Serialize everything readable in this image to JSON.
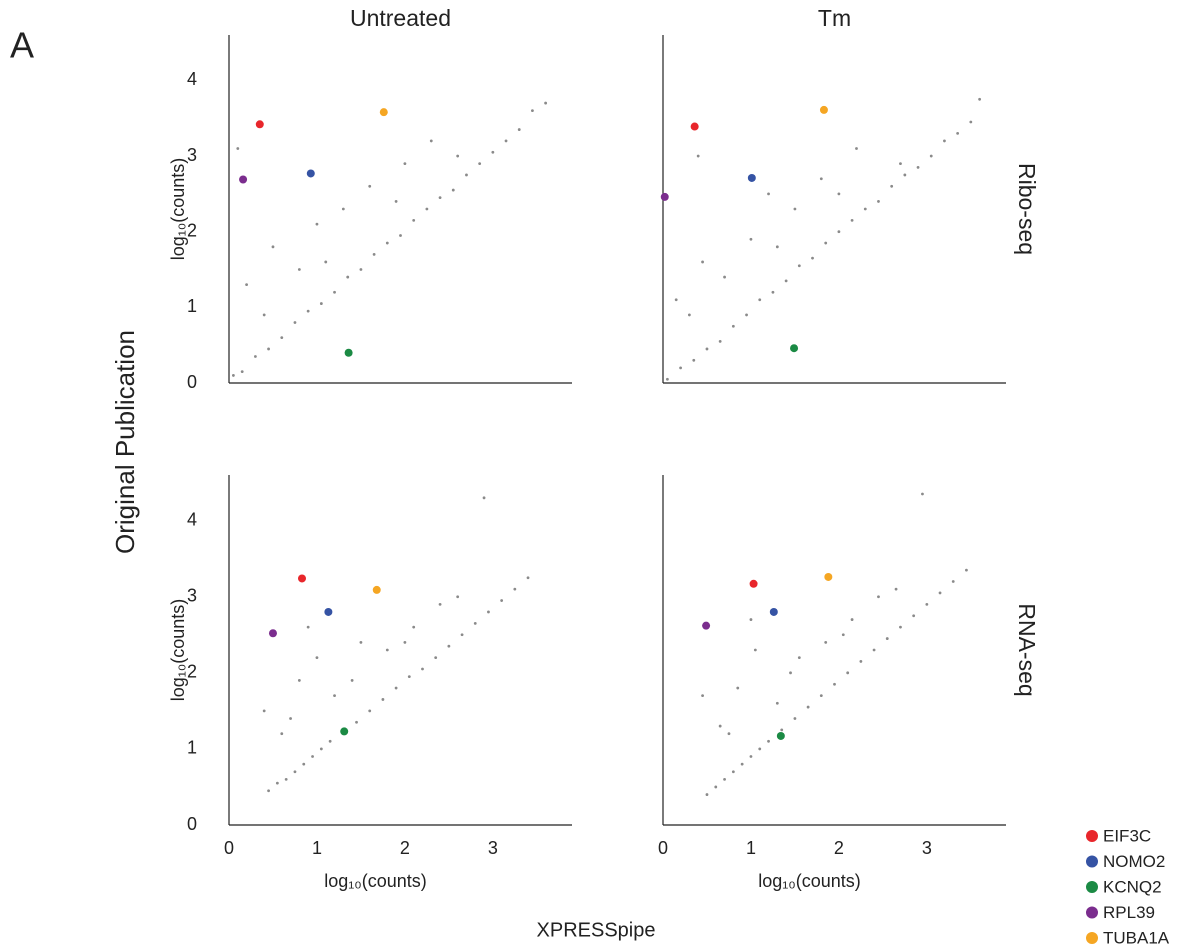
{
  "panel_label": "A",
  "ylabel": "Original Publication",
  "xlabel": "XPRESSpipe",
  "legend": [
    {
      "name": "EIF3C",
      "color": "#e8262b"
    },
    {
      "name": "NOMO2",
      "color": "#3553a4"
    },
    {
      "name": "KCNQ2",
      "color": "#1b8a44"
    },
    {
      "name": "RPL39",
      "color": "#7b2d8e"
    },
    {
      "name": "TUBA1A",
      "color": "#f5a623"
    }
  ],
  "chart_data": [
    {
      "type": "scatter",
      "title": "Untreated",
      "ylabel": "log₁₀(counts)",
      "xlim": [
        0,
        3.9
      ],
      "ylim": [
        0,
        4.6
      ],
      "yticks": [
        0,
        1,
        2,
        3,
        4
      ],
      "points": {
        "color": "#8a8a8a",
        "x": [
          0.05,
          0.15,
          0.3,
          0.45,
          0.6,
          0.75,
          0.9,
          1.05,
          1.2,
          1.35,
          1.5,
          1.65,
          1.8,
          1.95,
          2.1,
          2.25,
          2.4,
          2.55,
          2.7,
          2.85,
          3.0,
          3.15,
          3.3,
          3.45,
          0.2,
          0.5,
          0.8,
          1.0,
          1.3,
          1.6,
          2.0,
          2.3,
          0.4,
          1.1,
          1.9,
          2.6,
          3.6,
          0.1
        ],
        "values": [
          0.1,
          0.15,
          0.35,
          0.45,
          0.6,
          0.8,
          0.95,
          1.05,
          1.2,
          1.4,
          1.5,
          1.7,
          1.85,
          1.95,
          2.15,
          2.3,
          2.45,
          2.55,
          2.75,
          2.9,
          3.05,
          3.2,
          3.35,
          3.6,
          1.3,
          1.8,
          1.5,
          2.1,
          2.3,
          2.6,
          2.9,
          3.2,
          0.9,
          1.6,
          2.4,
          3.0,
          3.7,
          3.1
        ]
      },
      "genes": {
        "x": [
          0.35,
          0.93,
          1.36,
          0.16,
          1.76
        ],
        "values": [
          3.42,
          2.77,
          0.4,
          2.69,
          3.58
        ]
      }
    },
    {
      "type": "scatter",
      "title": "Tm",
      "row_label": "Ribo-seq",
      "xlim": [
        0,
        3.9
      ],
      "ylim": [
        0,
        4.6
      ],
      "points": {
        "color": "#8a8a8a",
        "x": [
          0.05,
          0.2,
          0.35,
          0.5,
          0.65,
          0.8,
          0.95,
          1.1,
          1.25,
          1.4,
          1.55,
          1.7,
          1.85,
          2.0,
          2.15,
          2.3,
          2.45,
          2.6,
          2.75,
          2.9,
          3.05,
          3.2,
          3.35,
          3.5,
          0.15,
          0.45,
          0.7,
          1.0,
          1.2,
          1.5,
          1.8,
          2.2,
          0.3,
          1.3,
          2.0,
          2.7,
          3.6,
          0.4
        ],
        "values": [
          0.05,
          0.2,
          0.3,
          0.45,
          0.55,
          0.75,
          0.9,
          1.1,
          1.2,
          1.35,
          1.55,
          1.65,
          1.85,
          2.0,
          2.15,
          2.3,
          2.4,
          2.6,
          2.75,
          2.85,
          3.0,
          3.2,
          3.3,
          3.45,
          1.1,
          1.6,
          1.4,
          1.9,
          2.5,
          2.3,
          2.7,
          3.1,
          0.9,
          1.8,
          2.5,
          2.9,
          3.75,
          3.0
        ]
      },
      "genes": {
        "x": [
          0.36,
          1.01,
          1.49,
          0.02,
          1.83
        ],
        "values": [
          3.39,
          2.71,
          0.46,
          2.46,
          3.61
        ]
      }
    },
    {
      "type": "scatter",
      "ylabel": "log₁₀(counts)",
      "xlabel": "log₁₀(counts)",
      "xlim": [
        0,
        3.9
      ],
      "ylim": [
        0,
        4.6
      ],
      "yticks": [
        0,
        1,
        2,
        3,
        4
      ],
      "xticks": [
        0,
        1,
        2,
        3
      ],
      "points": {
        "color": "#8a8a8a",
        "x": [
          0.45,
          0.55,
          0.65,
          0.75,
          0.85,
          0.95,
          1.05,
          1.15,
          1.3,
          1.45,
          1.6,
          1.75,
          1.9,
          2.05,
          2.2,
          2.35,
          2.5,
          2.65,
          2.8,
          2.95,
          3.1,
          3.25,
          3.4,
          0.4,
          0.6,
          0.8,
          1.0,
          1.2,
          1.5,
          1.8,
          2.1,
          2.4,
          0.7,
          1.4,
          2.0,
          2.6,
          2.9,
          0.9
        ],
        "values": [
          0.45,
          0.55,
          0.6,
          0.7,
          0.8,
          0.9,
          1.0,
          1.1,
          1.2,
          1.35,
          1.5,
          1.65,
          1.8,
          1.95,
          2.05,
          2.2,
          2.35,
          2.5,
          2.65,
          2.8,
          2.95,
          3.1,
          3.25,
          1.5,
          1.2,
          1.9,
          2.2,
          1.7,
          2.4,
          2.3,
          2.6,
          2.9,
          1.4,
          1.9,
          2.4,
          3.0,
          4.3,
          2.6
        ]
      },
      "genes": {
        "x": [
          0.83,
          1.13,
          1.31,
          0.5,
          1.68
        ],
        "values": [
          3.24,
          2.8,
          1.23,
          2.52,
          3.09
        ]
      }
    },
    {
      "type": "scatter",
      "row_label": "RNA-seq",
      "xlabel": "log₁₀(counts)",
      "xlim": [
        0,
        3.9
      ],
      "ylim": [
        0,
        4.6
      ],
      "xticks": [
        0,
        1,
        2,
        3
      ],
      "points": {
        "color": "#8a8a8a",
        "x": [
          0.5,
          0.6,
          0.7,
          0.8,
          0.9,
          1.0,
          1.1,
          1.2,
          1.35,
          1.5,
          1.65,
          1.8,
          1.95,
          2.1,
          2.25,
          2.4,
          2.55,
          2.7,
          2.85,
          3.0,
          3.15,
          3.3,
          3.45,
          0.45,
          0.65,
          0.85,
          1.05,
          1.3,
          1.55,
          1.85,
          2.15,
          2.45,
          0.75,
          1.45,
          2.05,
          2.65,
          2.95,
          1.0
        ],
        "values": [
          0.4,
          0.5,
          0.6,
          0.7,
          0.8,
          0.9,
          1.0,
          1.1,
          1.25,
          1.4,
          1.55,
          1.7,
          1.85,
          2.0,
          2.15,
          2.3,
          2.45,
          2.6,
          2.75,
          2.9,
          3.05,
          3.2,
          3.35,
          1.7,
          1.3,
          1.8,
          2.3,
          1.6,
          2.2,
          2.4,
          2.7,
          3.0,
          1.2,
          2.0,
          2.5,
          3.1,
          4.35,
          2.7
        ]
      },
      "genes": {
        "x": [
          1.03,
          1.26,
          1.34,
          0.49,
          1.88
        ],
        "values": [
          3.17,
          2.8,
          1.17,
          2.62,
          3.26
        ]
      }
    }
  ]
}
